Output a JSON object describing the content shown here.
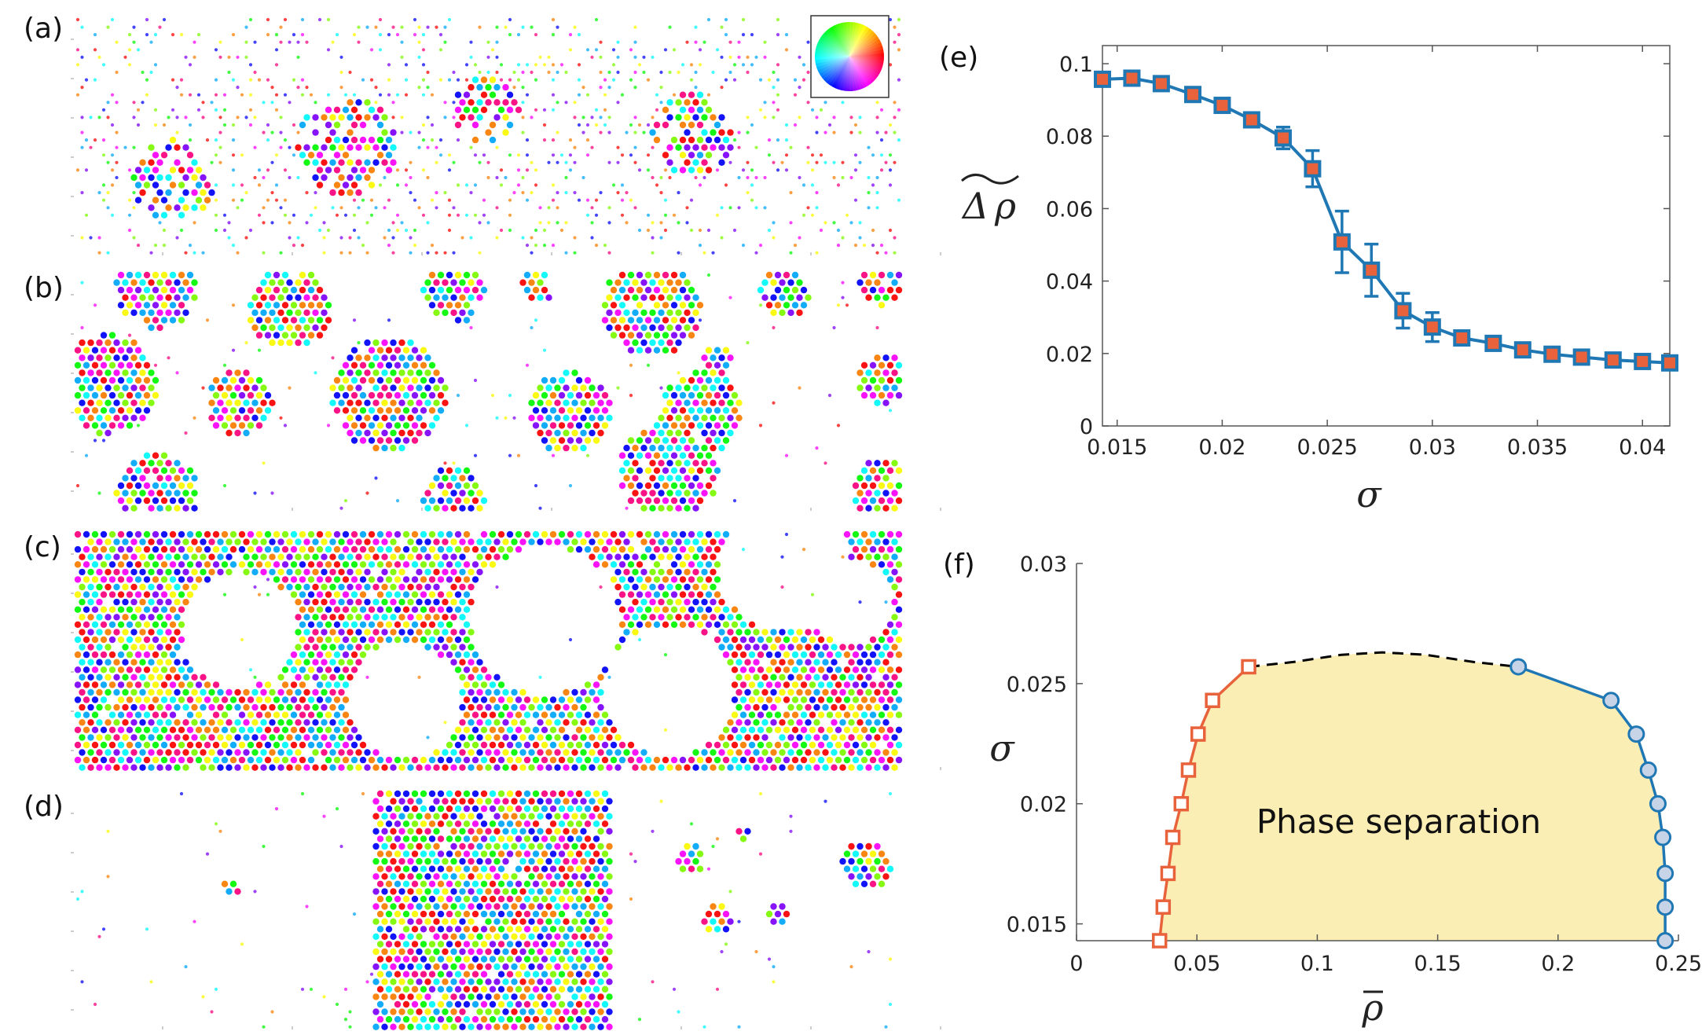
{
  "panels": {
    "a": {
      "label": "(a)",
      "density": 0.35,
      "blobs": [
        [
          0.12,
          0.7,
          0.05
        ],
        [
          0.33,
          0.55,
          0.06
        ],
        [
          0.5,
          0.4,
          0.04
        ],
        [
          0.75,
          0.5,
          0.05
        ]
      ]
    },
    "b": {
      "label": "(b)",
      "density": 0.05,
      "blobs": [
        [
          0.1,
          0.07,
          0.05
        ],
        [
          0.26,
          0.16,
          0.05
        ],
        [
          0.46,
          0.08,
          0.04
        ],
        [
          0.56,
          0.07,
          0.02
        ],
        [
          0.7,
          0.15,
          0.06
        ],
        [
          0.86,
          0.1,
          0.03
        ],
        [
          0.98,
          0.04,
          0.03
        ],
        [
          0.04,
          0.48,
          0.06
        ],
        [
          0.2,
          0.56,
          0.04
        ],
        [
          0.38,
          0.52,
          0.07
        ],
        [
          0.6,
          0.6,
          0.05
        ],
        [
          0.76,
          0.6,
          0.05
        ],
        [
          0.78,
          0.38,
          0.02
        ],
        [
          0.98,
          0.46,
          0.03
        ],
        [
          0.72,
          0.85,
          0.06
        ],
        [
          0.1,
          0.95,
          0.05
        ],
        [
          0.46,
          0.97,
          0.04
        ],
        [
          0.98,
          0.93,
          0.04
        ]
      ]
    },
    "c": {
      "label": "(c)",
      "holes": [
        [
          0.2,
          0.42,
          0.07
        ],
        [
          0.4,
          0.72,
          0.07
        ],
        [
          0.57,
          0.38,
          0.09
        ],
        [
          0.72,
          0.68,
          0.08
        ],
        [
          0.86,
          0.15,
          0.08
        ],
        [
          0.94,
          0.3,
          0.05
        ]
      ]
    },
    "d": {
      "label": "(d)",
      "band": [
        0.36,
        0.65
      ],
      "blobs": [
        [
          0.75,
          0.3,
          0.02
        ],
        [
          0.96,
          0.32,
          0.03
        ],
        [
          0.78,
          0.55,
          0.02
        ],
        [
          0.85,
          0.52,
          0.015
        ],
        [
          0.19,
          0.42,
          0.01
        ],
        [
          0.81,
          0.18,
          0.01
        ]
      ]
    }
  },
  "color_wheel_name": "hue-color-wheel",
  "colors": {
    "blue": "#1f77b4",
    "orange": "#e8623c",
    "yellow_fill": "#fbeeb5",
    "black": "#000000"
  },
  "chart_data": [
    {
      "panel": "(e)",
      "type": "line",
      "title": "",
      "xlabel": "σ",
      "ylabel": "Δρ (tilde)",
      "xlim": [
        0.0143,
        0.0413
      ],
      "ylim": [
        0,
        0.105
      ],
      "xticks": [
        "0.015",
        "0.02",
        "0.025",
        "0.03",
        "0.035",
        "0.04"
      ],
      "xtick_values": [
        0.015,
        0.02,
        0.025,
        0.03,
        0.035,
        0.04
      ],
      "yticks": [
        "0",
        "0.02",
        "0.04",
        "0.06",
        "0.08",
        "0.1"
      ],
      "ytick_values": [
        0,
        0.02,
        0.04,
        0.06,
        0.08,
        0.1
      ],
      "series": [
        {
          "name": "Δρ",
          "x": [
            0.0143,
            0.0157,
            0.0171,
            0.0186,
            0.02,
            0.0214,
            0.0229,
            0.0243,
            0.0257,
            0.0271,
            0.0286,
            0.03,
            0.0314,
            0.0329,
            0.0343,
            0.0357,
            0.0371,
            0.0386,
            0.04,
            0.0413
          ],
          "y": [
            0.0957,
            0.096,
            0.0945,
            0.0915,
            0.0885,
            0.0845,
            0.0795,
            0.071,
            0.0508,
            0.043,
            0.0318,
            0.0273,
            0.0243,
            0.0228,
            0.021,
            0.0198,
            0.019,
            0.0182,
            0.0178,
            0.0174
          ],
          "err": [
            0,
            0,
            0,
            0,
            0.001,
            0.0015,
            0.003,
            0.005,
            0.0085,
            0.0072,
            0.0048,
            0.004,
            0.002,
            0.0015,
            0.001,
            0,
            0,
            0,
            0,
            0
          ]
        }
      ]
    },
    {
      "panel": "(f)",
      "type": "line",
      "title": "",
      "xlabel": "ρ̄",
      "ylabel": "σ",
      "xlim": [
        0,
        0.25
      ],
      "ylim": [
        0.0143,
        0.03
      ],
      "xticks": [
        "0",
        "0.05",
        "0.1",
        "0.15",
        "0.2",
        "0.25"
      ],
      "xtick_values": [
        0,
        0.05,
        0.1,
        0.15,
        0.2,
        0.25
      ],
      "yticks": [
        "0.015",
        "0.02",
        "0.025",
        "0.03"
      ],
      "ytick_values": [
        0.015,
        0.02,
        0.025,
        0.03
      ],
      "annotation": "Phase separation",
      "series": [
        {
          "name": "low-density branch",
          "x": [
            0.0345,
            0.036,
            0.038,
            0.04,
            0.0435,
            0.0465,
            0.0505,
            0.0565,
            0.0715
          ],
          "y": [
            0.0143,
            0.0157,
            0.0171,
            0.0186,
            0.02,
            0.0214,
            0.0229,
            0.0243,
            0.0257
          ]
        },
        {
          "name": "high-density branch",
          "x": [
            0.1835,
            0.222,
            0.2325,
            0.2375,
            0.2415,
            0.2435,
            0.2445,
            0.2445,
            0.2445
          ],
          "y": [
            0.0257,
            0.0243,
            0.0229,
            0.0214,
            0.02,
            0.0186,
            0.0171,
            0.0157,
            0.0143
          ]
        },
        {
          "name": "critical region (dashed)",
          "x": [
            0.0715,
            0.09,
            0.11,
            0.127,
            0.145,
            0.165,
            0.1835
          ],
          "y": [
            0.0257,
            0.0259,
            0.0262,
            0.0263,
            0.0262,
            0.0259,
            0.0257
          ]
        }
      ]
    }
  ]
}
